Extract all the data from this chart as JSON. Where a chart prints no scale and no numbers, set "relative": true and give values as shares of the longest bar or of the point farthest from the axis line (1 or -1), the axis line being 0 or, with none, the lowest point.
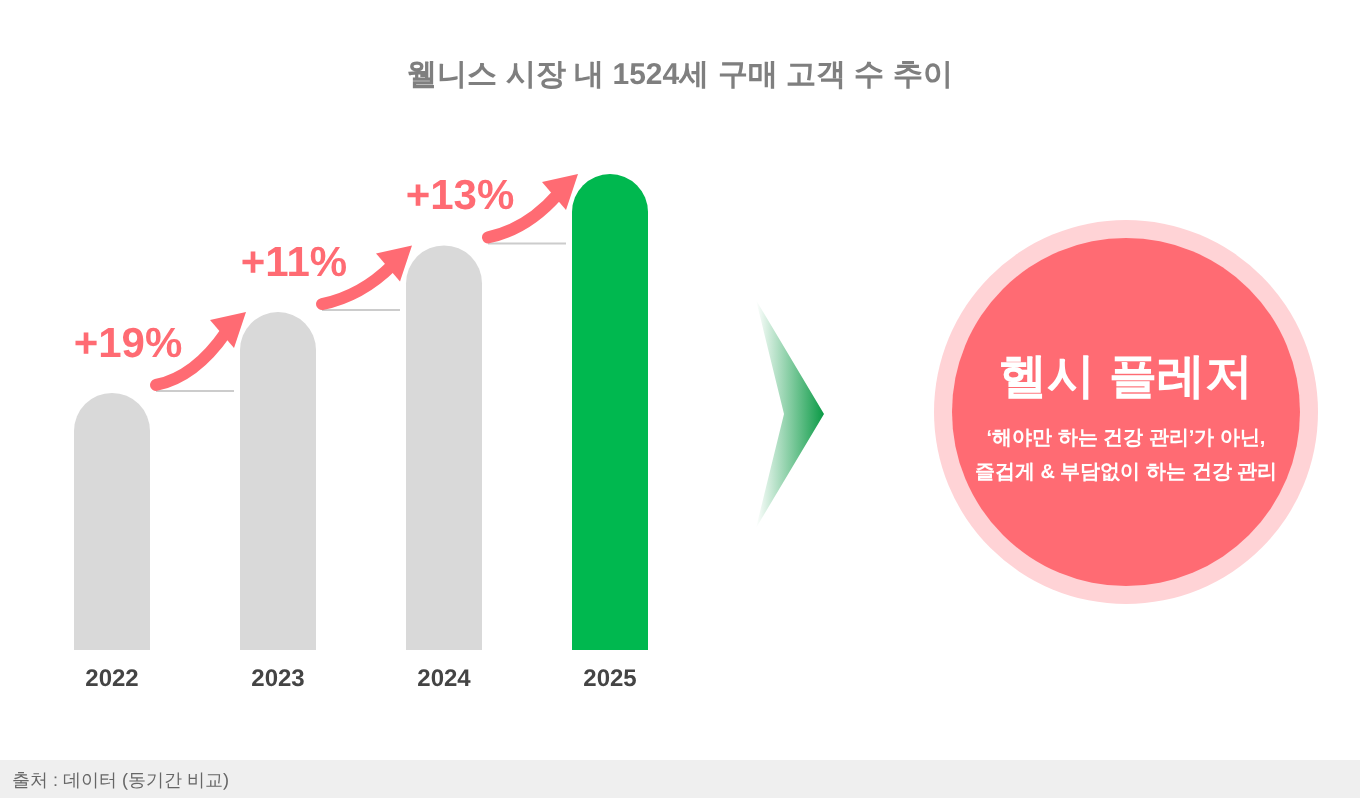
{
  "chart_data": [
    {
      "type": "bar",
      "title": "웰니스 시장 내 1524세 구매 고객 수 추이",
      "relative": true,
      "categories": [
        "2022",
        "2023",
        "2024",
        "2025"
      ],
      "values": [
        0.54,
        0.71,
        0.85,
        1
      ],
      "colors": [
        "#d9d9d9",
        "#d9d9d9",
        "#d9d9d9",
        "#00b84f"
      ],
      "annotations": [
        {
          "text": "+19%",
          "x": "2022",
          "y": 0.54
        },
        {
          "text": "+11%",
          "x": "2023",
          "y": 0.71
        },
        {
          "text": "+13%",
          "x": "2024",
          "y": 0.85
        },
        "출처 : 데이터 (동기간 비교)"
      ]
    },
    {
      "type": "other",
      "title": "헬시 플레저",
      "annotations": [
        "‘해야만 하는 건강 관리’가 아닌,",
        "즐겁게 & 부담없이 하는 건강 관리"
      ]
    }
  ]
}
